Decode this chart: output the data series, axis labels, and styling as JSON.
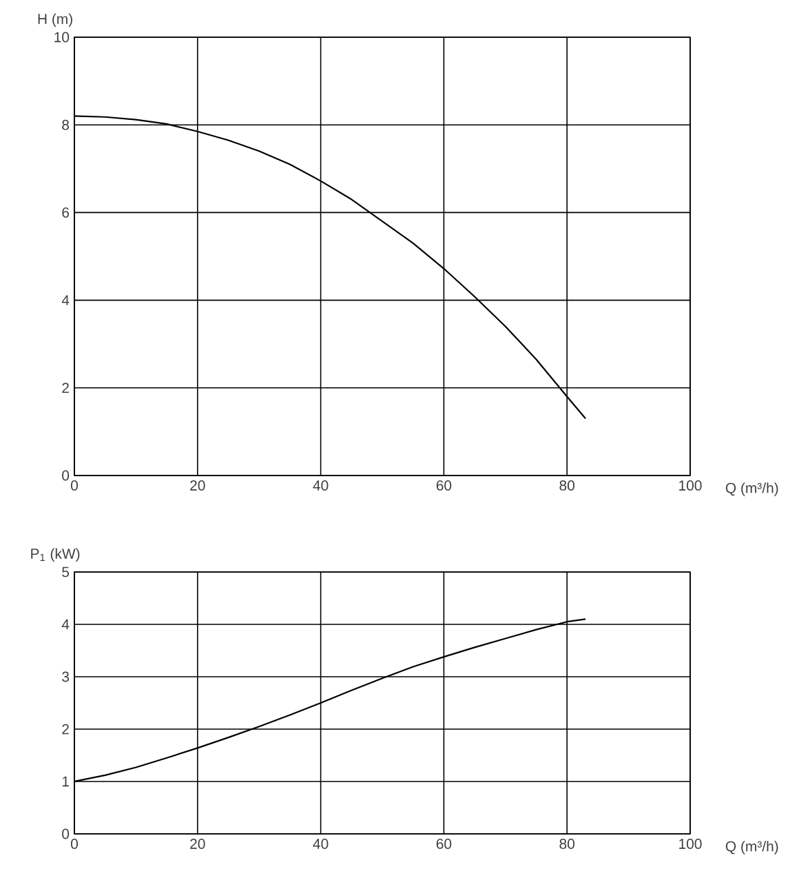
{
  "chart_data": [
    {
      "type": "line",
      "xlabel": "Q (m³/h)",
      "ylabel": "H (m)",
      "xlim": [
        0,
        100
      ],
      "ylim": [
        0,
        10
      ],
      "xticks": [
        0,
        20,
        40,
        60,
        80,
        100
      ],
      "yticks": [
        0,
        2,
        4,
        6,
        8,
        10
      ],
      "grid": true,
      "series": [
        {
          "color": "#000000",
          "x": [
            0,
            5,
            10,
            15,
            20,
            25,
            30,
            35,
            40,
            45,
            50,
            55,
            60,
            65,
            70,
            75,
            80,
            83
          ],
          "values": [
            8.2,
            8.18,
            8.12,
            8.02,
            7.85,
            7.65,
            7.4,
            7.1,
            6.72,
            6.3,
            5.8,
            5.3,
            4.72,
            4.08,
            3.4,
            2.65,
            1.8,
            1.3
          ]
        }
      ]
    },
    {
      "type": "line",
      "xlabel": "Q (m³/h)",
      "ylabel": "P$_{1}$ (kW)",
      "xlim": [
        0,
        100
      ],
      "ylim": [
        0,
        5
      ],
      "xticks": [
        0,
        20,
        40,
        60,
        80,
        100
      ],
      "yticks": [
        0,
        1,
        2,
        3,
        4,
        5
      ],
      "grid": true,
      "series": [
        {
          "color": "#000000",
          "x": [
            0,
            5,
            10,
            15,
            20,
            25,
            30,
            35,
            40,
            45,
            50,
            55,
            60,
            65,
            70,
            75,
            80,
            83
          ],
          "values": [
            1.0,
            1.12,
            1.27,
            1.45,
            1.64,
            1.84,
            2.05,
            2.27,
            2.5,
            2.74,
            2.97,
            3.19,
            3.38,
            3.56,
            3.73,
            3.9,
            4.05,
            4.1
          ]
        }
      ]
    }
  ]
}
